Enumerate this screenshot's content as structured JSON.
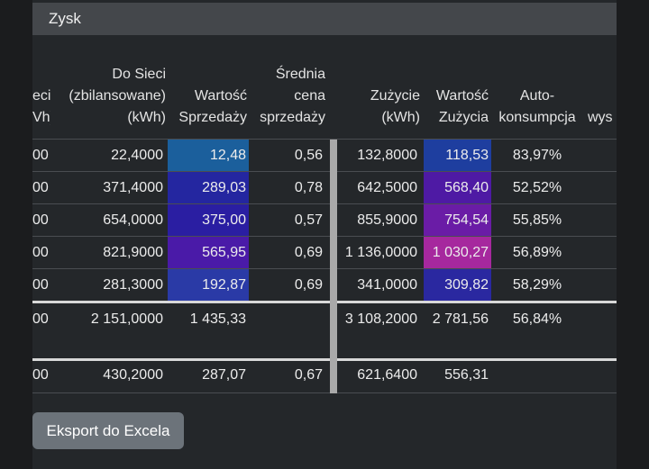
{
  "section": {
    "title": "Zysk"
  },
  "headers": {
    "col0": [
      "eci",
      "Vh)"
    ],
    "col1": [
      "Do Sieci",
      "(zbilansowane)",
      "(kWh)"
    ],
    "col2": [
      "Wartość",
      "Sprzedaży"
    ],
    "col3": [
      "Średnia",
      "cena",
      "sprzedaży"
    ],
    "col4": [
      "Zużycie",
      "(kWh)"
    ],
    "col5": [
      "Wartość",
      "Zużycia"
    ],
    "col6": [
      "Auto-",
      "konsumpcja"
    ],
    "col7": [
      "wys"
    ]
  },
  "rows": [
    {
      "c0": "00",
      "c1": "22,4000",
      "c2": "12,48",
      "c3": "0,56",
      "c4": "132,8000",
      "c5": "118,53",
      "c6": "83,97%"
    },
    {
      "c0": "00",
      "c1": "371,4000",
      "c2": "289,03",
      "c3": "0,78",
      "c4": "642,5000",
      "c5": "568,40",
      "c6": "52,52%"
    },
    {
      "c0": "00",
      "c1": "654,0000",
      "c2": "375,00",
      "c3": "0,57",
      "c4": "855,9000",
      "c5": "754,54",
      "c6": "55,85%"
    },
    {
      "c0": "00",
      "c1": "821,9000",
      "c2": "565,95",
      "c3": "0,69",
      "c4": "1 136,0000",
      "c5": "1 030,27",
      "c6": "56,89%"
    },
    {
      "c0": "00",
      "c1": "281,3000",
      "c2": "192,87",
      "c3": "0,69",
      "c4": "341,0000",
      "c5": "309,82",
      "c6": "58,29%"
    }
  ],
  "totals": {
    "c0": "00",
    "c1": "2 151,0000",
    "c2": "1 435,33",
    "c3": "",
    "c4": "3 108,2000",
    "c5": "2 781,56",
    "c6": "56,84%"
  },
  "averages": {
    "c0": "00",
    "c1": "430,2000",
    "c2": "287,07",
    "c3": "0,67",
    "c4": "621,6400",
    "c5": "556,31",
    "c6": ""
  },
  "heat_colors": {
    "c2": [
      "#1b5f9c",
      "#2426a0",
      "#2a1ea2",
      "#4a1aa8",
      "#2a3aa6"
    ],
    "c5": [
      "#1e3e9f",
      "#4e1aa4",
      "#6a1ca6",
      "#a6289e",
      "#2a28a0"
    ]
  },
  "export_button": {
    "label": "Eksport do Excela"
  }
}
